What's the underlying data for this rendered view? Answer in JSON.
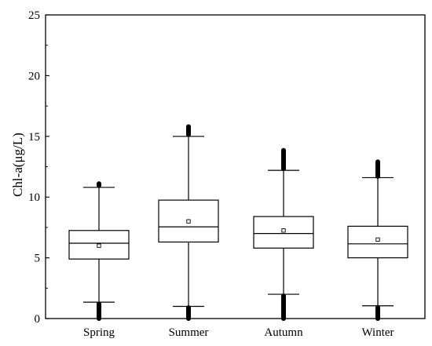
{
  "chart_data": {
    "type": "box",
    "title": "",
    "xlabel": "",
    "ylabel": "Chl-a(μg/L)",
    "ylim": [
      0,
      25
    ],
    "yticks": [
      0,
      5,
      10,
      15,
      20,
      25
    ],
    "grid": false,
    "legend": "none",
    "categories": [
      "Spring",
      "Summer",
      "Autumn",
      "Winter"
    ],
    "series": [
      {
        "category": "Spring",
        "whisker_low": 1.35,
        "q1": 4.9,
        "median": 6.2,
        "q3": 7.25,
        "whisker_high": 10.8,
        "mean": 6.0,
        "outliers_low": [
          0.0,
          0.05,
          0.1,
          0.15,
          0.2,
          0.25,
          0.3,
          0.35,
          0.4,
          0.45,
          0.5,
          0.55,
          0.6,
          0.65,
          0.7,
          0.75,
          0.8,
          0.85,
          0.9,
          0.95,
          1.0,
          1.05,
          1.1,
          1.15,
          1.2
        ],
        "outliers_high": [
          10.95,
          11.0,
          11.05,
          11.1
        ]
      },
      {
        "category": "Summer",
        "whisker_low": 1.0,
        "q1": 6.3,
        "median": 7.55,
        "q3": 9.75,
        "whisker_high": 15.0,
        "mean": 8.0,
        "outliers_low": [
          0.0,
          0.05,
          0.1,
          0.15,
          0.2,
          0.25,
          0.3,
          0.35,
          0.4,
          0.45,
          0.5,
          0.55,
          0.6,
          0.65,
          0.7,
          0.75,
          0.8,
          0.85,
          0.9
        ],
        "outliers_high": [
          15.15,
          15.2,
          15.25,
          15.3,
          15.35,
          15.4,
          15.45,
          15.5,
          15.55,
          15.6,
          15.65,
          15.7,
          15.75,
          15.8
        ]
      },
      {
        "category": "Autumn",
        "whisker_low": 2.0,
        "q1": 5.8,
        "median": 7.0,
        "q3": 8.4,
        "whisker_high": 12.2,
        "mean": 7.25,
        "outliers_low": [
          0.0,
          0.05,
          0.1,
          0.15,
          0.2,
          0.25,
          0.3,
          0.35,
          0.4,
          0.45,
          0.5,
          0.55,
          0.6,
          0.65,
          0.7,
          0.75,
          0.8,
          0.85,
          0.9,
          0.95,
          1.0,
          1.05,
          1.1,
          1.15,
          1.2,
          1.25,
          1.3,
          1.35,
          1.4,
          1.45,
          1.5,
          1.55,
          1.6,
          1.65,
          1.7,
          1.75,
          1.8,
          1.85
        ],
        "outliers_high": [
          12.35,
          12.4,
          12.45,
          12.5,
          12.55,
          12.6,
          12.65,
          12.7,
          12.75,
          12.8,
          12.85,
          12.9,
          12.95,
          13.0,
          13.05,
          13.1,
          13.15,
          13.2,
          13.25,
          13.3,
          13.35,
          13.4,
          13.45,
          13.5,
          13.55,
          13.6,
          13.65,
          13.7,
          13.75,
          13.8,
          13.85
        ]
      },
      {
        "category": "Winter",
        "whisker_low": 1.05,
        "q1": 5.0,
        "median": 6.15,
        "q3": 7.6,
        "whisker_high": 11.6,
        "mean": 6.5,
        "outliers_low": [
          0.0,
          0.05,
          0.1,
          0.15,
          0.2,
          0.25,
          0.3,
          0.35,
          0.4,
          0.45,
          0.5,
          0.55,
          0.6,
          0.65,
          0.7,
          0.75,
          0.8,
          0.85,
          0.9
        ],
        "outliers_high": [
          11.7,
          11.75,
          11.8,
          11.85,
          11.9,
          11.95,
          12.0,
          12.05,
          12.1,
          12.15,
          12.2,
          12.25,
          12.3,
          12.35,
          12.4,
          12.45,
          12.5,
          12.55,
          12.6,
          12.65,
          12.7,
          12.75,
          12.8,
          12.85,
          12.9
        ]
      }
    ]
  }
}
